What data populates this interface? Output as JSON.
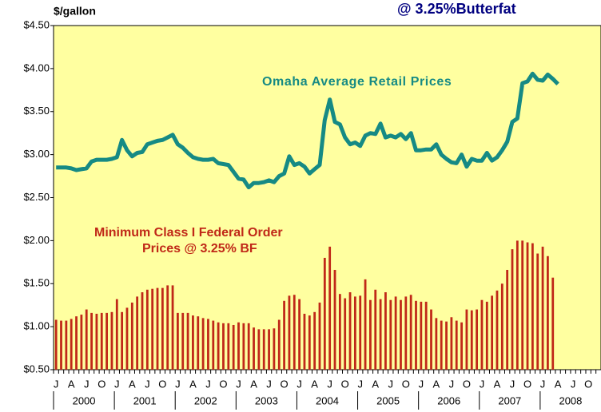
{
  "chart_data": {
    "type": "bar_line",
    "title": "@ 3.25%Butterfat",
    "y_label": "$/gallon",
    "annotations": [
      "Omaha Average Retail Prices",
      "Minimum Class I Federal Order",
      "Prices @ 3.25% BF"
    ],
    "categories": [
      "J",
      null,
      null,
      "A",
      null,
      null,
      "J",
      null,
      null,
      "O",
      null,
      null,
      "J",
      null,
      null,
      "A",
      null,
      null,
      "J",
      null,
      null,
      "O",
      null,
      null,
      "J",
      null,
      null,
      "A",
      null,
      null,
      "J",
      null,
      null,
      "O",
      null,
      null,
      "J",
      null,
      null,
      "A",
      null,
      null,
      "J",
      null,
      null,
      "O",
      null,
      null,
      "J",
      null,
      null,
      "A",
      null,
      null,
      "J",
      null,
      null,
      "O",
      null,
      null,
      "J",
      null,
      null,
      "A",
      null,
      null,
      "J",
      null,
      null,
      "O",
      null,
      null,
      "J",
      null,
      null,
      "A",
      null,
      null,
      "J",
      null,
      null,
      "O",
      null,
      null,
      "J",
      null,
      null,
      "A",
      null,
      null,
      "J",
      null,
      null,
      "O",
      null,
      null,
      "J",
      null,
      null,
      "A",
      null,
      null,
      "J",
      null,
      null,
      "O",
      null,
      null
    ],
    "year_labels": [
      "2000",
      "2001",
      "2002",
      "2003",
      "2004",
      "2005",
      "2006",
      "2007",
      "2008"
    ],
    "series": [
      {
        "name": "Omaha Average Retail Prices",
        "kind": "line",
        "color": "#168a84",
        "values": [
          2.85,
          2.85,
          2.85,
          2.84,
          2.82,
          2.83,
          2.84,
          2.92,
          2.94,
          2.94,
          2.94,
          2.95,
          2.97,
          3.17,
          3.05,
          2.98,
          3.02,
          3.03,
          3.12,
          3.14,
          3.16,
          3.17,
          3.2,
          3.23,
          3.12,
          3.08,
          3.02,
          2.97,
          2.95,
          2.94,
          2.94,
          2.95,
          2.9,
          2.89,
          2.88,
          2.8,
          2.72,
          2.71,
          2.62,
          2.67,
          2.67,
          2.68,
          2.7,
          2.68,
          2.75,
          2.78,
          2.98,
          2.88,
          2.9,
          2.86,
          2.78,
          2.83,
          2.88,
          3.4,
          3.64,
          3.38,
          3.35,
          3.2,
          3.12,
          3.14,
          3.1,
          3.22,
          3.25,
          3.24,
          3.36,
          3.2,
          3.22,
          3.2,
          3.24,
          3.18,
          3.25,
          3.05,
          3.05,
          3.06,
          3.06,
          3.12,
          3.0,
          2.95,
          2.91,
          2.9,
          3.0,
          2.86,
          2.95,
          2.93,
          2.93,
          3.02,
          2.93,
          2.97,
          3.05,
          3.15,
          3.38,
          3.42,
          3.83,
          3.85,
          3.94,
          3.87,
          3.86,
          3.93,
          3.88,
          3.82,
          null,
          null,
          null,
          null,
          null,
          null,
          null,
          null
        ]
      },
      {
        "name": "Minimum Class I Federal Order Prices @ 3.25% BF",
        "kind": "bar",
        "color": "#c02818",
        "values": [
          1.08,
          1.07,
          1.07,
          1.09,
          1.12,
          1.14,
          1.2,
          1.16,
          1.15,
          1.16,
          1.16,
          1.17,
          1.32,
          1.17,
          1.22,
          1.28,
          1.35,
          1.4,
          1.43,
          1.44,
          1.45,
          1.45,
          1.48,
          1.48,
          1.16,
          1.16,
          1.16,
          1.13,
          1.12,
          1.1,
          1.09,
          1.07,
          1.05,
          1.04,
          1.04,
          1.02,
          1.05,
          1.04,
          1.04,
          0.99,
          0.97,
          0.97,
          0.97,
          0.98,
          1.08,
          1.3,
          1.36,
          1.37,
          1.32,
          1.15,
          1.13,
          1.17,
          1.28,
          1.8,
          1.93,
          1.66,
          1.38,
          1.33,
          1.4,
          1.35,
          1.36,
          1.55,
          1.31,
          1.43,
          1.32,
          1.4,
          1.31,
          1.35,
          1.31,
          1.35,
          1.37,
          1.3,
          1.29,
          1.29,
          1.2,
          1.1,
          1.07,
          1.06,
          1.11,
          1.07,
          1.05,
          1.2,
          1.19,
          1.2,
          1.31,
          1.29,
          1.36,
          1.42,
          1.5,
          1.66,
          1.9,
          2.0,
          2.0,
          1.98,
          1.97,
          1.85,
          1.93,
          1.82,
          1.57,
          null,
          null,
          null,
          null,
          null,
          null,
          null,
          null,
          null
        ]
      }
    ],
    "ylim": [
      0.5,
      4.5
    ],
    "yticks": [
      {
        "value": 0.5,
        "label": "$0.50"
      },
      {
        "value": 1,
        "label": "$1.00"
      },
      {
        "value": 1.5,
        "label": "$1.50"
      },
      {
        "value": 2,
        "label": "$2.00"
      },
      {
        "value": 2.5,
        "label": "$2.50"
      },
      {
        "value": 3,
        "label": "$3.00"
      },
      {
        "value": 3.5,
        "label": "$3.50"
      },
      {
        "value": 4,
        "label": "$4.00"
      },
      {
        "value": 4.5,
        "label": "$4.50"
      }
    ],
    "background": "#ffffa0"
  }
}
